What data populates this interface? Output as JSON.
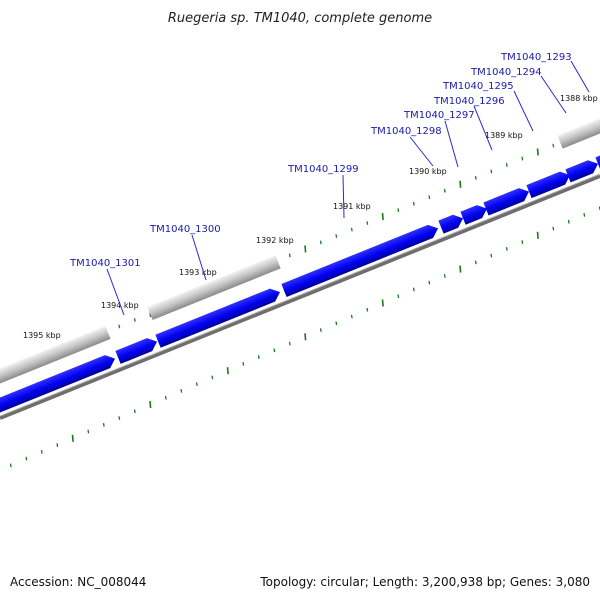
{
  "title": "Ruegeria sp. TM1040, complete genome",
  "footer": {
    "accession": "Accession: NC_008044",
    "topology": "Topology: circular; Length: 3,200,938 bp; Genes: 3,080"
  },
  "kbp_labels": [
    "1388 kbp",
    "1389 kbp",
    "1390 kbp",
    "1391 kbp",
    "1392 kbp",
    "1393 kbp",
    "1394 kbp",
    "1395 kbp"
  ],
  "gene_labels": [
    "TM1040_1293",
    "TM1040_1294",
    "TM1040_1295",
    "TM1040_1296",
    "TM1040_1297",
    "TM1040_1298",
    "TM1040_1299",
    "TM1040_1300",
    "TM1040_1301"
  ],
  "colors": {
    "gene": "#0000ff",
    "gene_shadow": "#00008a",
    "pseudo_feature": "#b8b8b8",
    "backbone": "#888888",
    "ticks": "#1a7a1a",
    "label": "#1a1ab0"
  }
}
